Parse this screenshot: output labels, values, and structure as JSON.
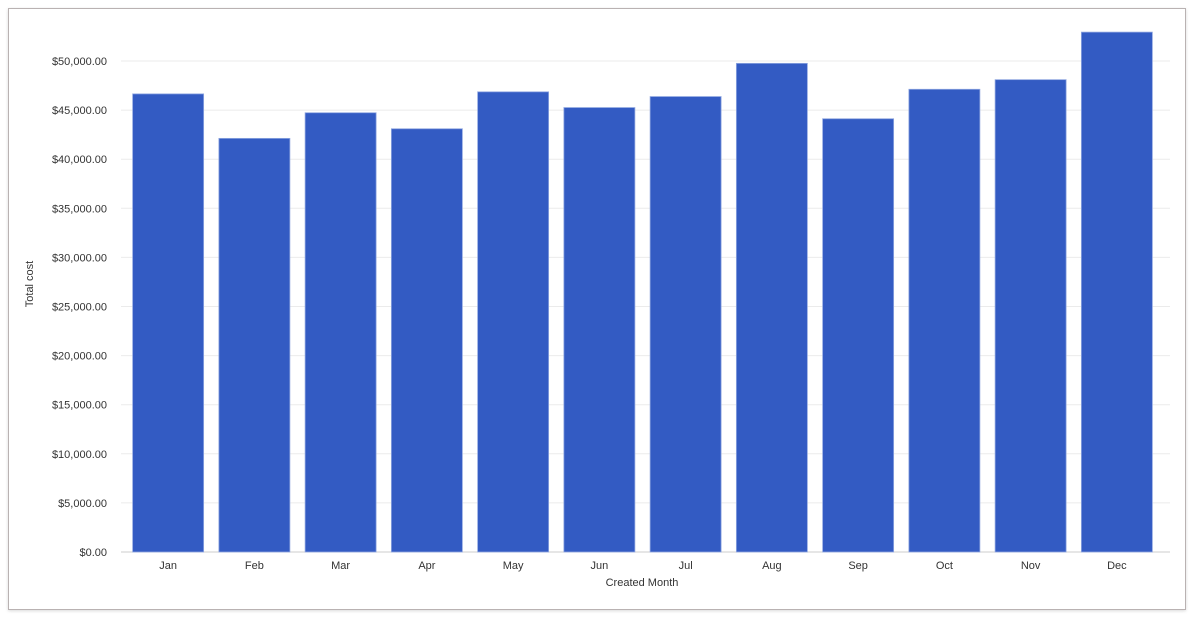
{
  "chart_data": {
    "type": "bar",
    "title": "",
    "xlabel": "Created Month",
    "ylabel": "Total cost",
    "categories": [
      "Jan",
      "Feb",
      "Mar",
      "Apr",
      "May",
      "Jun",
      "Jul",
      "Aug",
      "Sep",
      "Oct",
      "Nov",
      "Dec"
    ],
    "values": [
      46650,
      42120,
      44730,
      43100,
      46860,
      45260,
      46380,
      49760,
      44120,
      47120,
      48100,
      52940
    ],
    "ylim": [
      0,
      53500
    ],
    "yticks": [
      0,
      5000,
      10000,
      15000,
      20000,
      25000,
      30000,
      35000,
      40000,
      45000,
      50000
    ],
    "ytick_labels": [
      "$0.00",
      "$5,000.00",
      "$10,000.00",
      "$15,000.00",
      "$20,000.00",
      "$25,000.00",
      "$30,000.00",
      "$35,000.00",
      "$40,000.00",
      "$45,000.00",
      "$50,000.00"
    ],
    "grid": true,
    "legend": "none",
    "bar_color": "#335bc3"
  }
}
